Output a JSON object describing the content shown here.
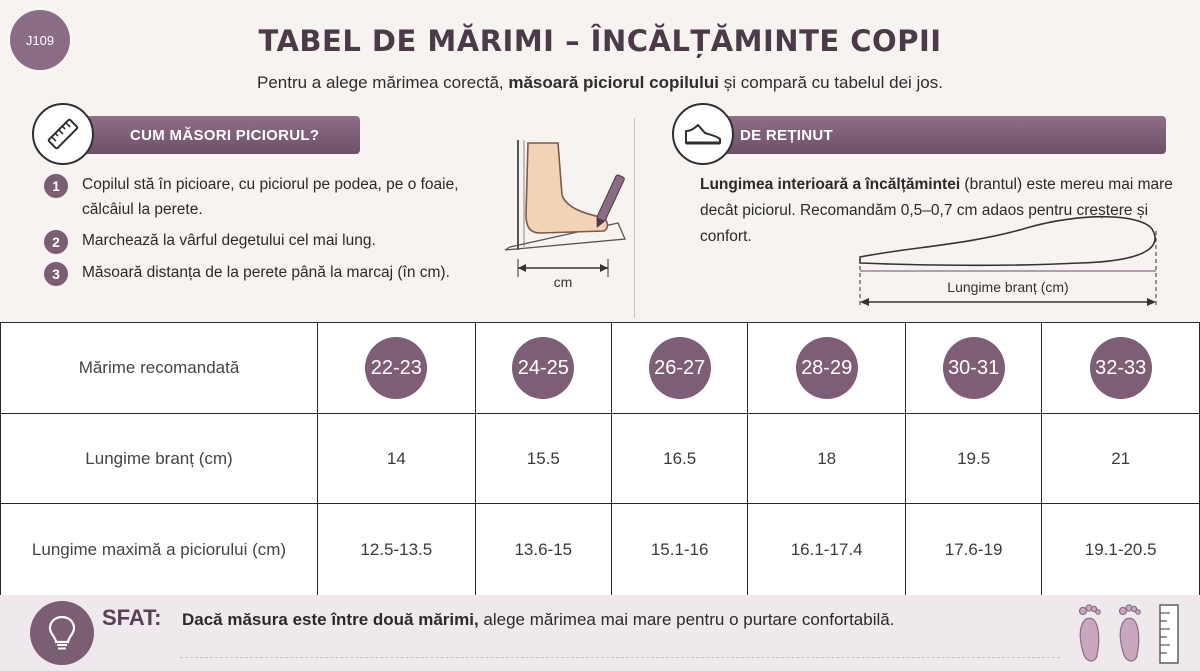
{
  "code": "J109",
  "title": "TABEL DE MĂRIMI – ÎNCĂLȚĂMINTE COPII",
  "subtitle": {
    "before": "Pentru a alege mărimea corectă, ",
    "bold": "măsoară piciorul copilului",
    "after": " și compară cu tabelul dei jos."
  },
  "how_to": {
    "heading": "CUM MĂSORI PICIORUL?",
    "steps": [
      {
        "num": "1",
        "text": "Copilul stă în picioare, cu piciorul pe podea, pe o foaie, călcâiul la perete."
      },
      {
        "num": "2",
        "text": "Marchează la vârful degetului cel mai lung."
      },
      {
        "num": "3",
        "text": "Măsoară distanța de la perete până la marcaj (în cm)."
      }
    ],
    "illustration_label": "cm"
  },
  "remember": {
    "heading": "DE REȚINUT",
    "bold": "Lungimea interioară a încălțămintei",
    "text": " (brantul) este mereu mai mare decât piciorul. Recomandăm 0,5–0,7 cm adaos pentru creștere și confort.",
    "insole_label": "Lungime branț (cm)"
  },
  "table": {
    "row_headers": [
      "Mărime recomandată",
      "Lungime branț (cm)",
      "Lungime maximă a piciorului (cm)"
    ],
    "sizes": [
      "22-23",
      "24-25",
      "26-27",
      "28-29",
      "30-31",
      "32-33"
    ],
    "insole_cm": [
      "14",
      "15.5",
      "16.5",
      "18",
      "19.5",
      "21"
    ],
    "max_foot_cm": [
      "12.5-13.5",
      "13.6-15",
      "15.1-16",
      "16.1-17.4",
      "17.6-19",
      "19.1-20.5"
    ]
  },
  "tip": {
    "label": "SFAT:",
    "bold": "Dacă măsura este între două mărimi,",
    "text": " alege mărimea mai mare pentru o purtare confortabilă."
  },
  "colors": {
    "accent": "#7b5d74",
    "banner": "#7f6079",
    "background": "#f6f3f1"
  },
  "icons": [
    "ruler-icon",
    "shoe-icon",
    "lightbulb-icon",
    "footprints-icon",
    "measure-scale-icon"
  ]
}
